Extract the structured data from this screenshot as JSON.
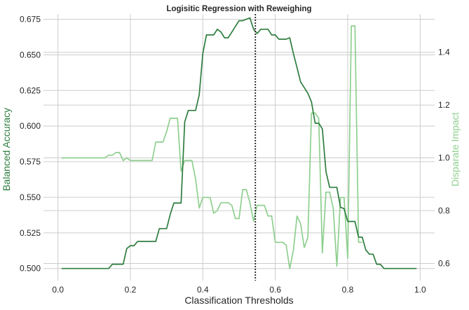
{
  "chart_data": {
    "type": "line",
    "title": "Logisitic Regression with Reweighing",
    "xlabel": "Classification Thresholds",
    "ylabel": "Balanced Accuracy",
    "y2label": "Disparate Impact",
    "xlim": [
      -0.04,
      1.04
    ],
    "ylim": [
      0.4915,
      0.6787
    ],
    "y2lim": [
      0.535,
      1.545
    ],
    "xticks": [
      "0.0",
      "0.2",
      "0.4",
      "0.6",
      "0.8",
      "1.0"
    ],
    "yticks": [
      "0.500",
      "0.525",
      "0.550",
      "0.575",
      "0.600",
      "0.625",
      "0.650",
      "0.675"
    ],
    "y2ticks": [
      "0.6",
      "0.8",
      "1.0",
      "1.2",
      "1.4"
    ],
    "best_threshold": 0.545,
    "colors": {
      "accuracy": "#2e7d3e",
      "disparate_impact": "#8fcf8f",
      "threshold_line": "#222222"
    },
    "series": [
      {
        "name": "Balanced Accuracy",
        "axis": "left",
        "x": [
          0.01,
          0.02,
          0.03,
          0.04,
          0.05,
          0.06,
          0.07,
          0.08,
          0.09,
          0.1,
          0.11,
          0.12,
          0.13,
          0.14,
          0.15,
          0.16,
          0.17,
          0.18,
          0.19,
          0.2,
          0.21,
          0.22,
          0.23,
          0.24,
          0.25,
          0.26,
          0.27,
          0.28,
          0.29,
          0.3,
          0.31,
          0.32,
          0.33,
          0.34,
          0.35,
          0.36,
          0.37,
          0.38,
          0.39,
          0.4,
          0.41,
          0.42,
          0.43,
          0.44,
          0.45,
          0.46,
          0.47,
          0.48,
          0.49,
          0.5,
          0.51,
          0.52,
          0.53,
          0.54,
          0.55,
          0.56,
          0.57,
          0.58,
          0.59,
          0.6,
          0.61,
          0.62,
          0.63,
          0.64,
          0.65,
          0.66,
          0.67,
          0.68,
          0.69,
          0.7,
          0.71,
          0.72,
          0.73,
          0.74,
          0.75,
          0.76,
          0.77,
          0.78,
          0.79,
          0.8,
          0.81,
          0.82,
          0.83,
          0.84,
          0.85,
          0.86,
          0.87,
          0.88,
          0.89,
          0.9,
          0.91,
          0.92,
          0.93,
          0.94,
          0.95,
          0.96,
          0.97,
          0.98,
          0.99
        ],
        "values": [
          0.5,
          0.5,
          0.5,
          0.5,
          0.5,
          0.5,
          0.5,
          0.5,
          0.5,
          0.5,
          0.5,
          0.5,
          0.5,
          0.5,
          0.503,
          0.503,
          0.503,
          0.503,
          0.514,
          0.516,
          0.516,
          0.519,
          0.519,
          0.519,
          0.519,
          0.519,
          0.519,
          0.528,
          0.528,
          0.528,
          0.538,
          0.546,
          0.546,
          0.546,
          0.603,
          0.611,
          0.611,
          0.611,
          0.622,
          0.651,
          0.664,
          0.664,
          0.664,
          0.668,
          0.666,
          0.662,
          0.662,
          0.666,
          0.67,
          0.674,
          0.674,
          0.675,
          0.676,
          0.668,
          0.665,
          0.668,
          0.668,
          0.668,
          0.664,
          0.664,
          0.661,
          0.661,
          0.661,
          0.662,
          0.651,
          0.641,
          0.631,
          0.627,
          0.623,
          0.617,
          0.602,
          0.602,
          0.598,
          0.568,
          0.557,
          0.557,
          0.557,
          0.543,
          0.542,
          0.533,
          0.533,
          0.533,
          0.522,
          0.522,
          0.513,
          0.51,
          0.51,
          0.503,
          0.503,
          0.5,
          0.5,
          0.5,
          0.5,
          0.5,
          0.5,
          0.5,
          0.5,
          0.5,
          0.5
        ]
      },
      {
        "name": "Disparate Impact",
        "axis": "right",
        "x": [
          0.01,
          0.02,
          0.03,
          0.04,
          0.05,
          0.06,
          0.07,
          0.08,
          0.09,
          0.1,
          0.11,
          0.12,
          0.13,
          0.14,
          0.15,
          0.16,
          0.17,
          0.18,
          0.19,
          0.2,
          0.21,
          0.22,
          0.23,
          0.24,
          0.25,
          0.26,
          0.27,
          0.28,
          0.29,
          0.3,
          0.31,
          0.32,
          0.33,
          0.34,
          0.35,
          0.36,
          0.37,
          0.38,
          0.39,
          0.4,
          0.41,
          0.42,
          0.43,
          0.44,
          0.45,
          0.46,
          0.47,
          0.48,
          0.49,
          0.5,
          0.51,
          0.52,
          0.53,
          0.54,
          0.55,
          0.56,
          0.57,
          0.58,
          0.59,
          0.6,
          0.61,
          0.62,
          0.63,
          0.64,
          0.65,
          0.66,
          0.67,
          0.68,
          0.69,
          0.7,
          0.71,
          0.72,
          0.73,
          0.74,
          0.75,
          0.76,
          0.77,
          0.78,
          0.79,
          0.8,
          0.81,
          0.82,
          0.83,
          0.84
        ],
        "values": [
          1.0,
          1.0,
          1.0,
          1.0,
          1.0,
          1.0,
          1.0,
          1.0,
          1.0,
          1.0,
          1.0,
          1.0,
          1.0,
          1.01,
          1.01,
          1.02,
          1.02,
          0.99,
          1.0,
          0.99,
          0.99,
          0.99,
          0.99,
          0.99,
          0.99,
          0.99,
          1.06,
          1.06,
          1.06,
          1.1,
          1.15,
          1.15,
          1.15,
          0.95,
          0.99,
          0.99,
          0.99,
          0.92,
          0.81,
          0.85,
          0.85,
          0.85,
          0.79,
          0.8,
          0.83,
          0.83,
          0.83,
          0.82,
          0.77,
          0.77,
          0.88,
          0.88,
          0.83,
          0.76,
          0.82,
          0.82,
          0.82,
          0.78,
          0.78,
          0.68,
          0.68,
          0.68,
          0.67,
          0.58,
          0.65,
          0.78,
          0.75,
          0.66,
          0.7,
          1.17,
          1.17,
          1.15,
          0.64,
          0.87,
          0.87,
          0.81,
          0.59,
          0.85,
          0.85,
          0.62,
          1.5,
          1.5,
          0.68,
          0.68
        ]
      }
    ]
  }
}
